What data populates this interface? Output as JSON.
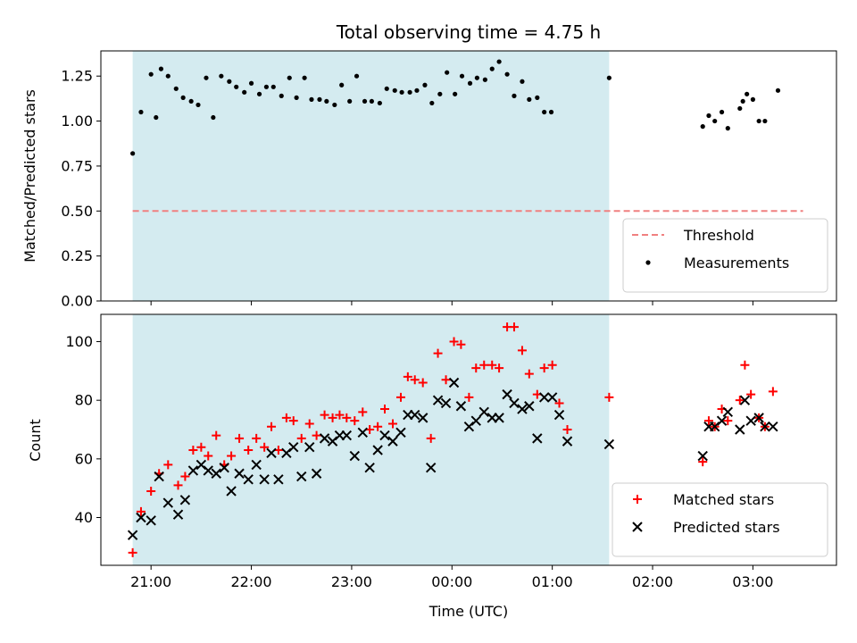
{
  "chart_data": {
    "type": "scatter",
    "title": "Total observing time = 4.75 h",
    "xlabel": "Time (UTC)",
    "x_unit": "hours after 00:00 UTC (negative = previous day)",
    "xlim": [
      -3.5,
      3.833
    ],
    "xticks": [
      {
        "value": -3,
        "label": "21:00"
      },
      {
        "value": -2,
        "label": "22:00"
      },
      {
        "value": -1,
        "label": "23:00"
      },
      {
        "value": 0,
        "label": "00:00"
      },
      {
        "value": 1,
        "label": "01:00"
      },
      {
        "value": 2,
        "label": "02:00"
      },
      {
        "value": 3,
        "label": "03:00"
      }
    ],
    "shaded_interval": {
      "x": [
        -3.183,
        1.567
      ],
      "color": "#d4ebf0"
    },
    "panels": [
      {
        "id": "ratio",
        "ylabel": "Matched/Predicted stars",
        "ylim": [
          0,
          1.39
        ],
        "yticks": [
          {
            "value": 0,
            "label": "0.00"
          },
          {
            "value": 0.25,
            "label": "0.25"
          },
          {
            "value": 0.5,
            "label": "0.50"
          },
          {
            "value": 0.75,
            "label": "0.75"
          },
          {
            "value": 1.0,
            "label": "1.00"
          },
          {
            "value": 1.25,
            "label": "1.25"
          }
        ],
        "legend": {
          "position": "lower right"
        },
        "series": [
          {
            "name": "Threshold",
            "kind": "line",
            "style": "dashed",
            "color": "#f08080",
            "x": [
              -3.183,
              3.5
            ],
            "y": [
              0.5,
              0.5
            ]
          },
          {
            "name": "Measurements",
            "kind": "scatter",
            "marker": "dot",
            "color": "#000000",
            "points": [
              [
                -3.183,
                0.82
              ],
              [
                -3.1,
                1.05
              ],
              [
                -3.0,
                1.26
              ],
              [
                -2.95,
                1.02
              ],
              [
                -2.9,
                1.29
              ],
              [
                -2.83,
                1.25
              ],
              [
                -2.75,
                1.18
              ],
              [
                -2.68,
                1.13
              ],
              [
                -2.6,
                1.11
              ],
              [
                -2.53,
                1.09
              ],
              [
                -2.45,
                1.24
              ],
              [
                -2.38,
                1.02
              ],
              [
                -2.3,
                1.25
              ],
              [
                -2.22,
                1.22
              ],
              [
                -2.15,
                1.19
              ],
              [
                -2.07,
                1.16
              ],
              [
                -2.0,
                1.21
              ],
              [
                -1.92,
                1.15
              ],
              [
                -1.85,
                1.19
              ],
              [
                -1.78,
                1.19
              ],
              [
                -1.7,
                1.14
              ],
              [
                -1.62,
                1.24
              ],
              [
                -1.55,
                1.13
              ],
              [
                -1.47,
                1.24
              ],
              [
                -1.4,
                1.12
              ],
              [
                -1.32,
                1.12
              ],
              [
                -1.25,
                1.11
              ],
              [
                -1.17,
                1.09
              ],
              [
                -1.1,
                1.2
              ],
              [
                -1.02,
                1.11
              ],
              [
                -0.95,
                1.25
              ],
              [
                -0.87,
                1.11
              ],
              [
                -0.8,
                1.11
              ],
              [
                -0.72,
                1.1
              ],
              [
                -0.65,
                1.18
              ],
              [
                -0.57,
                1.17
              ],
              [
                -0.5,
                1.16
              ],
              [
                -0.42,
                1.16
              ],
              [
                -0.35,
                1.17
              ],
              [
                -0.27,
                1.2
              ],
              [
                -0.2,
                1.1
              ],
              [
                -0.12,
                1.15
              ],
              [
                -0.05,
                1.27
              ],
              [
                0.03,
                1.15
              ],
              [
                0.1,
                1.25
              ],
              [
                0.18,
                1.21
              ],
              [
                0.25,
                1.24
              ],
              [
                0.33,
                1.23
              ],
              [
                0.4,
                1.29
              ],
              [
                0.47,
                1.33
              ],
              [
                0.55,
                1.26
              ],
              [
                0.62,
                1.14
              ],
              [
                0.7,
                1.22
              ],
              [
                0.77,
                1.12
              ],
              [
                0.85,
                1.13
              ],
              [
                0.92,
                1.05
              ],
              [
                0.99,
                1.05
              ],
              [
                1.567,
                1.24
              ],
              [
                2.5,
                0.97
              ],
              [
                2.56,
                1.03
              ],
              [
                2.62,
                1.0
              ],
              [
                2.69,
                1.05
              ],
              [
                2.75,
                0.96
              ],
              [
                2.87,
                1.07
              ],
              [
                2.9,
                1.11
              ],
              [
                2.94,
                1.15
              ],
              [
                3.0,
                1.12
              ],
              [
                3.06,
                1.0
              ],
              [
                3.12,
                1.0
              ],
              [
                3.25,
                1.17
              ]
            ]
          }
        ]
      },
      {
        "id": "count",
        "ylabel": "Count",
        "ylim": [
          23.7,
          109.3
        ],
        "yticks": [
          {
            "value": 40,
            "label": "40"
          },
          {
            "value": 60,
            "label": "60"
          },
          {
            "value": 80,
            "label": "80"
          },
          {
            "value": 100,
            "label": "100"
          }
        ],
        "legend": {
          "position": "lower right"
        },
        "series": [
          {
            "name": "Matched stars",
            "kind": "scatter",
            "marker": "plus",
            "color": "#ff0000",
            "points": [
              [
                -3.183,
                28
              ],
              [
                -3.1,
                42
              ],
              [
                -3.0,
                49
              ],
              [
                -2.92,
                55
              ],
              [
                -2.83,
                58
              ],
              [
                -2.73,
                51
              ],
              [
                -2.66,
                54
              ],
              [
                -2.58,
                63
              ],
              [
                -2.5,
                64
              ],
              [
                -2.43,
                61
              ],
              [
                -2.35,
                68
              ],
              [
                -2.27,
                58
              ],
              [
                -2.2,
                61
              ],
              [
                -2.12,
                67
              ],
              [
                -2.03,
                63
              ],
              [
                -1.95,
                67
              ],
              [
                -1.87,
                64
              ],
              [
                -1.8,
                71
              ],
              [
                -1.73,
                63
              ],
              [
                -1.65,
                74
              ],
              [
                -1.58,
                73
              ],
              [
                -1.5,
                67
              ],
              [
                -1.42,
                72
              ],
              [
                -1.35,
                68
              ],
              [
                -1.27,
                75
              ],
              [
                -1.19,
                74
              ],
              [
                -1.12,
                75
              ],
              [
                -1.05,
                74
              ],
              [
                -0.97,
                73
              ],
              [
                -0.89,
                76
              ],
              [
                -0.82,
                70
              ],
              [
                -0.74,
                71
              ],
              [
                -0.67,
                77
              ],
              [
                -0.59,
                72
              ],
              [
                -0.51,
                81
              ],
              [
                -0.44,
                88
              ],
              [
                -0.37,
                87
              ],
              [
                -0.29,
                86
              ],
              [
                -0.21,
                67
              ],
              [
                -0.14,
                96
              ],
              [
                -0.06,
                87
              ],
              [
                0.02,
                100
              ],
              [
                0.09,
                99
              ],
              [
                0.17,
                81
              ],
              [
                0.24,
                91
              ],
              [
                0.32,
                92
              ],
              [
                0.4,
                92
              ],
              [
                0.47,
                91
              ],
              [
                0.55,
                105
              ],
              [
                0.62,
                105
              ],
              [
                0.7,
                97
              ],
              [
                0.77,
                89
              ],
              [
                0.85,
                82
              ],
              [
                0.92,
                91
              ],
              [
                1.0,
                92
              ],
              [
                1.07,
                79
              ],
              [
                1.15,
                70
              ],
              [
                1.567,
                81
              ],
              [
                2.5,
                59
              ],
              [
                2.56,
                73
              ],
              [
                2.62,
                71
              ],
              [
                2.69,
                77
              ],
              [
                2.75,
                73
              ],
              [
                2.87,
                80
              ],
              [
                2.92,
                92
              ],
              [
                2.98,
                82
              ],
              [
                3.06,
                74
              ],
              [
                3.12,
                71
              ],
              [
                3.2,
                83
              ]
            ]
          },
          {
            "name": "Predicted stars",
            "kind": "scatter",
            "marker": "x",
            "color": "#000000",
            "points": [
              [
                -3.183,
                34
              ],
              [
                -3.1,
                40
              ],
              [
                -3.0,
                39
              ],
              [
                -2.92,
                54
              ],
              [
                -2.83,
                45
              ],
              [
                -2.73,
                41
              ],
              [
                -2.66,
                46
              ],
              [
                -2.58,
                56
              ],
              [
                -2.5,
                58
              ],
              [
                -2.43,
                56
              ],
              [
                -2.35,
                55
              ],
              [
                -2.27,
                57
              ],
              [
                -2.2,
                49
              ],
              [
                -2.12,
                55
              ],
              [
                -2.03,
                53
              ],
              [
                -1.95,
                58
              ],
              [
                -1.87,
                53
              ],
              [
                -1.8,
                62
              ],
              [
                -1.73,
                53
              ],
              [
                -1.65,
                62
              ],
              [
                -1.58,
                64
              ],
              [
                -1.5,
                54
              ],
              [
                -1.42,
                64
              ],
              [
                -1.35,
                55
              ],
              [
                -1.27,
                67
              ],
              [
                -1.19,
                66
              ],
              [
                -1.12,
                68
              ],
              [
                -1.05,
                68
              ],
              [
                -0.97,
                61
              ],
              [
                -0.89,
                69
              ],
              [
                -0.82,
                57
              ],
              [
                -0.74,
                63
              ],
              [
                -0.67,
                68
              ],
              [
                -0.59,
                66
              ],
              [
                -0.51,
                69
              ],
              [
                -0.44,
                75
              ],
              [
                -0.37,
                75
              ],
              [
                -0.29,
                74
              ],
              [
                -0.21,
                57
              ],
              [
                -0.14,
                80
              ],
              [
                -0.06,
                79
              ],
              [
                0.02,
                86
              ],
              [
                0.09,
                78
              ],
              [
                0.17,
                71
              ],
              [
                0.24,
                73
              ],
              [
                0.32,
                76
              ],
              [
                0.4,
                74
              ],
              [
                0.47,
                74
              ],
              [
                0.55,
                82
              ],
              [
                0.62,
                79
              ],
              [
                0.7,
                77
              ],
              [
                0.77,
                78
              ],
              [
                0.85,
                67
              ],
              [
                0.92,
                81
              ],
              [
                1.0,
                81
              ],
              [
                1.07,
                75
              ],
              [
                1.15,
                66
              ],
              [
                1.567,
                65
              ],
              [
                2.5,
                61
              ],
              [
                2.56,
                71
              ],
              [
                2.62,
                71
              ],
              [
                2.69,
                73
              ],
              [
                2.75,
                76
              ],
              [
                2.87,
                70
              ],
              [
                2.92,
                80
              ],
              [
                2.98,
                73
              ],
              [
                3.06,
                74
              ],
              [
                3.12,
                71
              ],
              [
                3.2,
                71
              ]
            ]
          }
        ]
      }
    ]
  }
}
